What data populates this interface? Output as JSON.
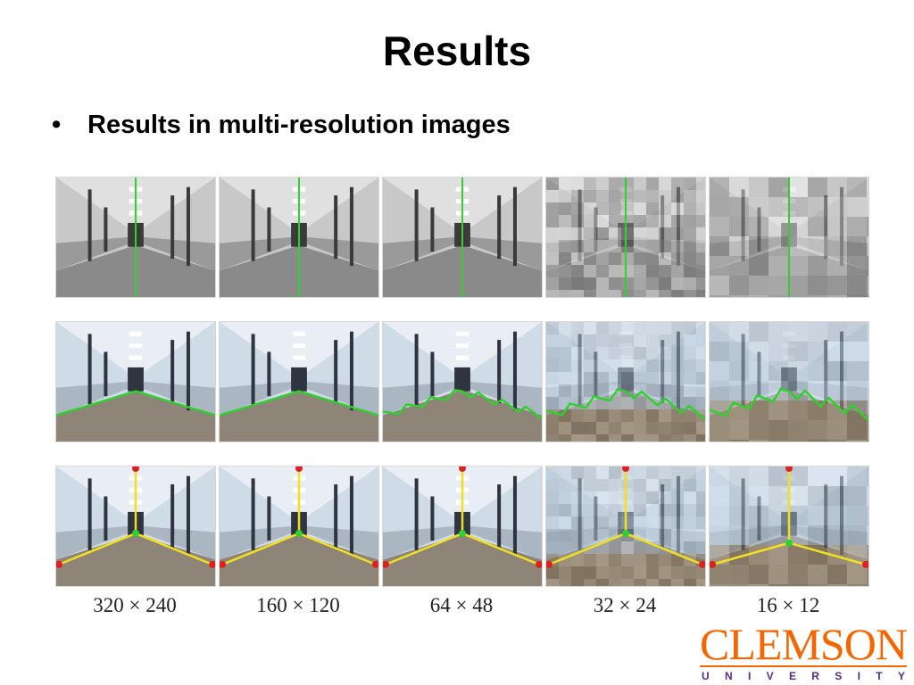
{
  "slide": {
    "title": "Results",
    "bullet": "Results in multi-resolution images"
  },
  "columns": [
    {
      "resolution": "320 × 240"
    },
    {
      "resolution": "160 × 120"
    },
    {
      "resolution": "64 × 48"
    },
    {
      "resolution": "32 × 24"
    },
    {
      "resolution": "16 × 12"
    }
  ],
  "rows": [
    {
      "kind": "vertical-center-line",
      "line_color": "#2fd02f"
    },
    {
      "kind": "floor-wall-boundary",
      "line_color": "#2fd02f"
    },
    {
      "kind": "vanishing-point-lines",
      "line_color": "#f0e020",
      "vertex_color": "#2fd02f",
      "endpoint_color": "#e02020"
    }
  ],
  "logo": {
    "word": "CLEMSON",
    "sub_letters": [
      "U",
      "N",
      "I",
      "V",
      "E",
      "R",
      "S",
      "I",
      "T",
      "Y"
    ],
    "primary_color": "#F56600",
    "secondary_color": "#522D80"
  }
}
